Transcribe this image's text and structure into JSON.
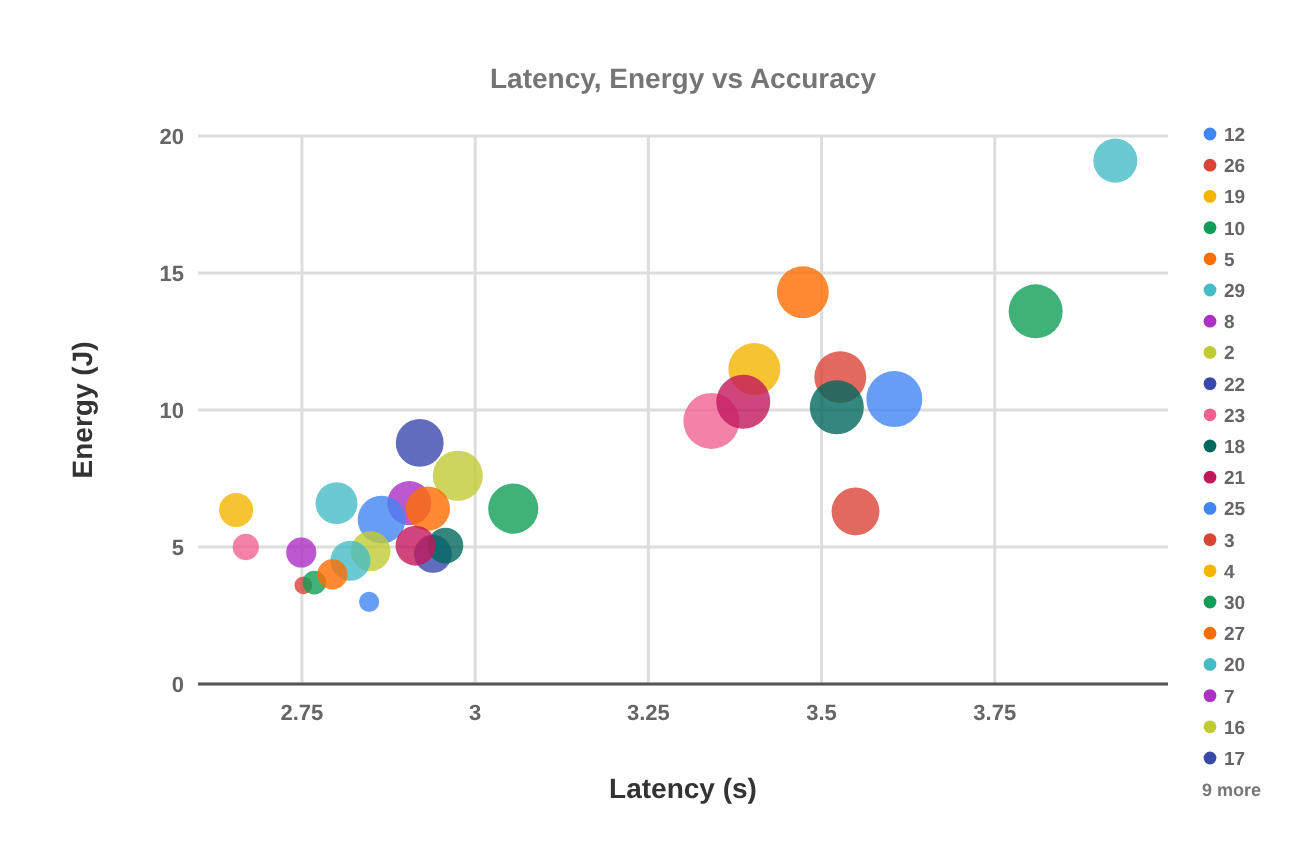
{
  "chart_data": {
    "type": "bubble",
    "title": "Latency, Energy vs Accuracy",
    "xlabel": "Latency (s)",
    "ylabel": "Energy (J)",
    "xlim": [
      2.6,
      4
    ],
    "xticks": [
      2.75,
      3,
      3.25,
      3.5,
      3.75
    ],
    "ylim": [
      0,
      20
    ],
    "yticks": [
      0,
      5,
      10,
      15,
      20
    ],
    "grid": true,
    "legend": "right",
    "annotations": [
      "9 more"
    ],
    "series": [
      {
        "name": "12",
        "color": "#4285f4",
        "x": [
          3.605
        ],
        "values": [
          10.4
        ],
        "sizes": [
          1
        ]
      },
      {
        "name": "26",
        "color": "#db4437",
        "x": [
          3.527
        ],
        "values": [
          11.2
        ],
        "sizes": [
          0.86
        ]
      },
      {
        "name": "19",
        "color": "#f4b400",
        "x": [
          3.403
        ],
        "values": [
          11.5
        ],
        "sizes": [
          0.86
        ]
      },
      {
        "name": "10",
        "color": "#0f9d58",
        "x": [
          3.809
        ],
        "values": [
          13.6
        ],
        "sizes": [
          0.93
        ]
      },
      {
        "name": "5",
        "color": "#ff6d00",
        "x": [
          3.473
        ],
        "values": [
          14.3
        ],
        "sizes": [
          0.86
        ]
      },
      {
        "name": "29",
        "color": "#46bdc6",
        "x": [
          3.924
        ],
        "values": [
          19.1
        ],
        "sizes": [
          0.62
        ]
      },
      {
        "name": "8",
        "color": "#ab30c4",
        "x": [
          2.905
        ],
        "values": [
          6.6
        ],
        "sizes": [
          0.62
        ]
      },
      {
        "name": "2",
        "color": "#c0ca33",
        "x": [
          2.975
        ],
        "values": [
          7.6
        ],
        "sizes": [
          0.8
        ]
      },
      {
        "name": "22",
        "color": "#3949ab",
        "x": [
          2.92
        ],
        "values": [
          8.8
        ],
        "sizes": [
          0.73
        ]
      },
      {
        "name": "23",
        "color": "#f06292",
        "x": [
          3.341
        ],
        "values": [
          9.6
        ],
        "sizes": [
          1
        ]
      },
      {
        "name": "18",
        "color": "#00695c",
        "x": [
          3.522
        ],
        "values": [
          10.1
        ],
        "sizes": [
          0.93
        ]
      },
      {
        "name": "21",
        "color": "#c2185b",
        "x": [
          3.387
        ],
        "values": [
          10.3
        ],
        "sizes": [
          0.93
        ]
      },
      {
        "name": "25",
        "color": "#4285f4",
        "x": [
          2.865
        ],
        "values": [
          6
        ],
        "sizes": [
          0.73
        ]
      },
      {
        "name": "3",
        "color": "#db4437",
        "x": [
          3.549
        ],
        "values": [
          6.3
        ],
        "sizes": [
          0.73
        ]
      },
      {
        "name": "4",
        "color": "#f4b400",
        "x": [
          2.655
        ],
        "values": [
          6.35
        ],
        "sizes": [
          0.37
        ]
      },
      {
        "name": "30",
        "color": "#0f9d58",
        "x": [
          3.055
        ],
        "values": [
          6.4
        ],
        "sizes": [
          0.8
        ]
      },
      {
        "name": "27",
        "color": "#ff6d00",
        "x": [
          2.932
        ],
        "values": [
          6.4
        ],
        "sizes": [
          0.62
        ]
      },
      {
        "name": "20",
        "color": "#46bdc6",
        "x": [
          2.8
        ],
        "values": [
          6.6
        ],
        "sizes": [
          0.56
        ]
      },
      {
        "name": "7",
        "color": "#ab30c4",
        "x": [
          2.749
        ],
        "values": [
          4.8
        ],
        "sizes": [
          0.29
        ]
      },
      {
        "name": "16",
        "color": "#c0ca33",
        "x": [
          2.849
        ],
        "values": [
          4.85
        ],
        "sizes": [
          0.51
        ]
      },
      {
        "name": "17",
        "color": "#3949ab",
        "x": [
          2.939
        ],
        "values": [
          4.75
        ],
        "sizes": [
          0.46
        ]
      },
      {
        "color": "#f06292",
        "x": [
          2.669
        ],
        "values": [
          5
        ],
        "sizes": [
          0.22
        ]
      },
      {
        "color": "#00695c",
        "x": [
          2.957
        ],
        "values": [
          5.05
        ],
        "sizes": [
          0.41
        ]
      },
      {
        "color": "#c2185b",
        "x": [
          2.914
        ],
        "values": [
          5.05
        ],
        "sizes": [
          0.51
        ]
      },
      {
        "color": "#4285f4",
        "x": [
          2.847
        ],
        "values": [
          3
        ],
        "sizes": [
          0.13
        ]
      },
      {
        "color": "#db4437",
        "x": [
          2.752
        ],
        "values": [
          3.6
        ],
        "sizes": [
          0.1
        ]
      },
      {
        "color": "#46bdc6",
        "x": [
          2.82
        ],
        "values": [
          4.5
        ],
        "sizes": [
          0.51
        ]
      },
      {
        "color": "#0f9d58",
        "x": [
          2.768
        ],
        "values": [
          3.7
        ],
        "sizes": [
          0.18
        ]
      },
      {
        "color": "#ff6d00",
        "x": [
          2.794
        ],
        "values": [
          4
        ],
        "sizes": [
          0.29
        ]
      }
    ]
  }
}
